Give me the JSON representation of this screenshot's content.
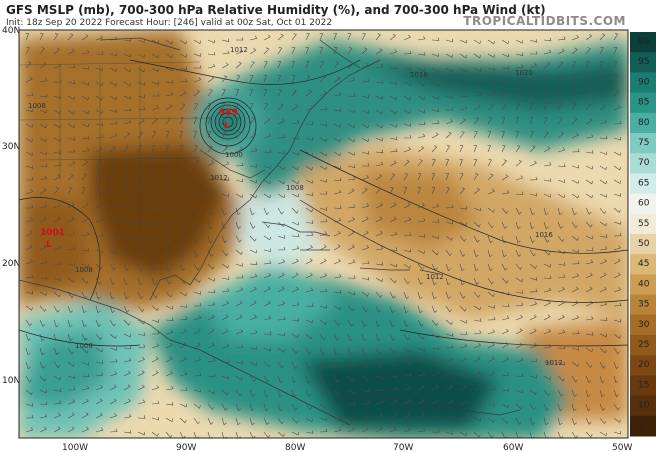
{
  "header": {
    "title": "GFS MSLP (mb), 700-300 hPa Relative Humidity (%), and 700-300 hPa Wind (kt)",
    "subtitle": "Init: 18z Sep 20 2022   Forecast Hour: [246]   valid at 00z Sat, Oct 01 2022",
    "brand": "TROPICALTIDBITS.COM"
  },
  "axes": {
    "lat_labels": [
      "40N",
      "30N",
      "20N",
      "10N"
    ],
    "lon_labels": [
      "100W",
      "90W",
      "80W",
      "70W",
      "60W",
      "50W"
    ]
  },
  "colorbar": {
    "labels": [
      "99",
      "95",
      "90",
      "85",
      "80",
      "75",
      "70",
      "65",
      "60",
      "55",
      "50",
      "45",
      "40",
      "35",
      "30",
      "25",
      "20",
      "15",
      "10",
      "5"
    ],
    "colors": [
      "#0a3f3a",
      "#115e56",
      "#1b7c73",
      "#2a9489",
      "#4aaea3",
      "#7fcbc1",
      "#aadcd6",
      "#d2ede9",
      "#f3f3ee",
      "#f2ebd8",
      "#e8d3a8",
      "#dbb877",
      "#cd9d52",
      "#b9833a",
      "#a66d29",
      "#92591d",
      "#7d4814",
      "#6a3a0f",
      "#56300c",
      "#3e2207"
    ]
  },
  "pressure": {
    "high_labels": [
      "1012",
      "1008",
      "1016",
      "1020",
      "1016",
      "1012",
      "1012",
      "1008",
      "1008",
      "1012",
      "1008"
    ],
    "low_center_1": "989",
    "low_center_1_sym": "L",
    "low_center_2": "1001",
    "low_center_2_sym": "L",
    "low_ring_label": "1000"
  }
}
